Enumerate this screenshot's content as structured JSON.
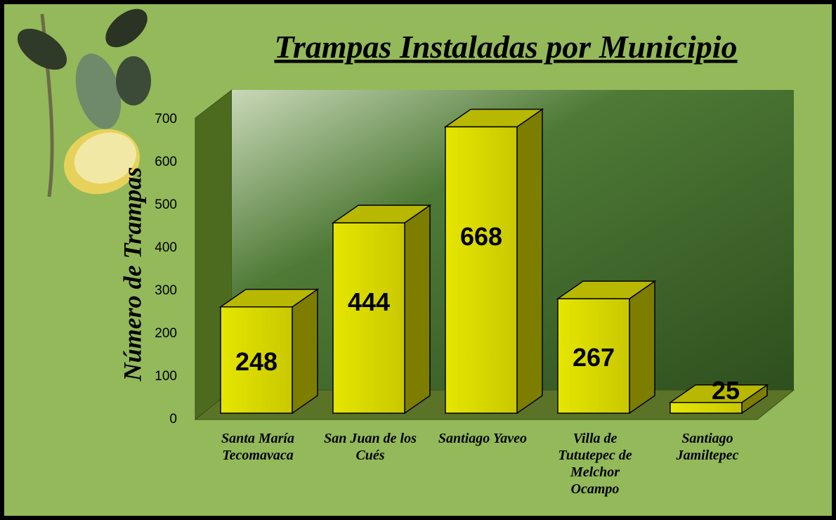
{
  "chart_data": {
    "type": "bar3d",
    "title": "Trampas Instaladas por Municipio",
    "y_label": "Número de Trampas",
    "categories": [
      "Santa María Tecomavaca",
      "San Juan de los Cués",
      "Santiago Yaveo",
      "Villa de Tututepec de Melchor Ocampo",
      "Santiago Jamiltepec"
    ],
    "values": [
      248,
      444,
      668,
      267,
      25
    ],
    "color": "#d2d200",
    "ylim": [
      0,
      700
    ],
    "yticks": [
      0,
      100,
      200,
      300,
      400,
      500,
      600,
      700
    ]
  }
}
